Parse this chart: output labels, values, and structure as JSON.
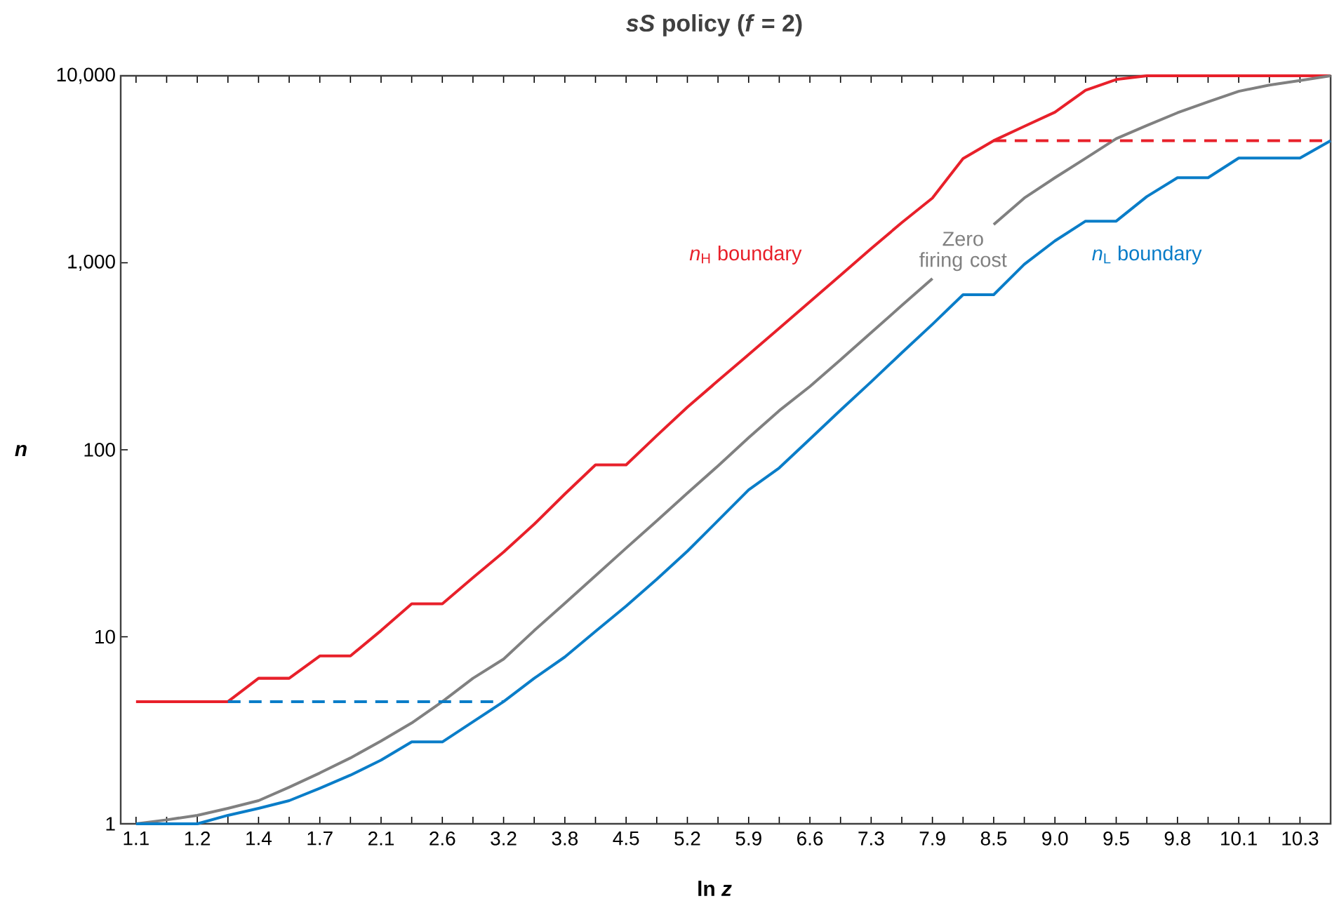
{
  "chart_data": {
    "type": "line",
    "title": "*sS* policy (*f* = 2)",
    "xlabel": "ln *z*",
    "ylabel": "n",
    "log": "y",
    "grid": false,
    "legend": false,
    "line_style": "solid",
    "marker": "none",
    "categories": [
      "1.1",
      null,
      "1.2",
      null,
      "1.4",
      null,
      "1.7",
      null,
      "2.1",
      null,
      "2.6",
      null,
      "3.2",
      null,
      "3.8",
      null,
      "4.5",
      null,
      "5.2",
      null,
      "5.9",
      null,
      "6.6",
      null,
      "7.3",
      null,
      "7.9",
      null,
      "8.5",
      null,
      "9.0",
      null,
      "9.5",
      null,
      "9.8",
      null,
      "10.1",
      null,
      "10.3",
      null
    ],
    "ylim": [
      1,
      10000
    ],
    "yticks": [
      1,
      10,
      100,
      {
        "value": 1000,
        "label": "1,000"
      },
      {
        "value": 10000,
        "label": "10,000"
      }
    ],
    "series": [
      {
        "name": "*n*$_{H}$ boundary",
        "color": "#e8202a",
        "values": [
          4.5,
          4.5,
          4.5,
          4.5,
          6.0,
          6.0,
          7.9,
          7.9,
          10.8,
          15,
          15,
          20.7,
          28.4,
          40,
          58,
          83,
          83,
          119,
          169,
          234,
          323,
          447,
          619,
          857,
          1190,
          1640,
          2220,
          3610,
          4500,
          5370,
          6390,
          8370,
          9550,
          10000,
          10000,
          10000,
          10000,
          10000,
          10000,
          10000
        ]
      },
      {
        "name": "Zero firing cost",
        "color": "#808080",
        "values": [
          1.0,
          1.05,
          1.11,
          1.21,
          1.33,
          1.57,
          1.87,
          2.25,
          2.77,
          3.46,
          4.5,
          6.0,
          7.6,
          10.8,
          15.1,
          21.2,
          29.8,
          41.7,
          58.6,
          82,
          116,
          162,
          218,
          303,
          423,
          591,
          824,
          null,
          1600,
          2220,
          2850,
          3620,
          4610,
          5420,
          6340,
          7250,
          8260,
          8920,
          9440,
          10000
        ]
      },
      {
        "name": "*n*$_{L}$ boundary",
        "color": "#0a7dc8",
        "values": [
          1.0,
          1.0,
          1.0,
          1.11,
          1.21,
          1.33,
          1.55,
          1.82,
          2.19,
          2.74,
          2.74,
          3.51,
          4.5,
          6.0,
          7.8,
          10.7,
          14.6,
          20.3,
          28.7,
          41.8,
          61,
          80,
          114,
          163,
          231,
          330,
          469,
          675,
          675,
          982,
          1310,
          1670,
          1670,
          2260,
          2850,
          2850,
          3630,
          3630,
          3630,
          4500
        ]
      },
      {
        "color": "#e8202a",
        "line_style": "dashed",
        "values": [
          null,
          null,
          null,
          null,
          null,
          null,
          null,
          null,
          null,
          null,
          null,
          null,
          null,
          null,
          null,
          null,
          null,
          null,
          null,
          null,
          null,
          null,
          null,
          null,
          null,
          null,
          null,
          null,
          4500,
          4500,
          4500,
          4500,
          4500,
          4500,
          4500,
          4500,
          4500,
          4500,
          4500,
          4500
        ]
      },
      {
        "color": "#0a7dc8",
        "line_style": "dashed",
        "values": [
          null,
          null,
          null,
          4.5,
          4.5,
          4.5,
          4.5,
          4.5,
          4.5,
          4.5,
          4.5,
          4.5,
          4.5,
          null,
          null,
          null,
          null,
          null,
          null,
          null,
          null,
          null,
          null,
          null,
          null,
          null,
          null,
          null,
          null,
          null,
          null,
          null,
          null,
          null,
          null,
          null,
          null,
          null,
          null,
          null
        ]
      }
    ]
  }
}
